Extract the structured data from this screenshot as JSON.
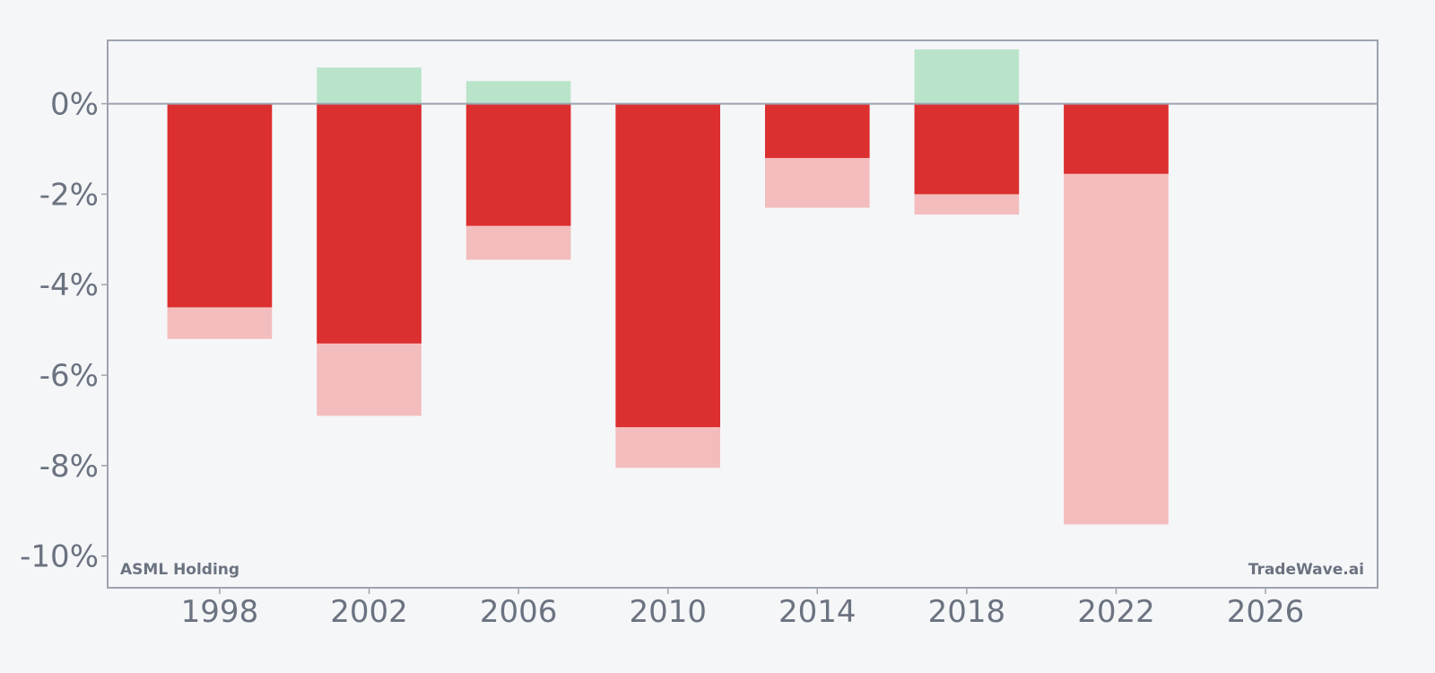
{
  "chart_data": {
    "type": "bar",
    "title": "",
    "xlabel": "",
    "ylabel": "",
    "x_ticks": [
      "1998",
      "2002",
      "2006",
      "2010",
      "2014",
      "2018",
      "2022",
      "2026"
    ],
    "y_ticks": [
      "0%",
      "-2%",
      "-4%",
      "-6%",
      "-8%",
      "-10%"
    ],
    "y_tick_values": [
      0,
      -2,
      -4,
      -6,
      -8,
      -10
    ],
    "xlim": [
      1995,
      2029
    ],
    "ylim": [
      -10.7,
      1.4
    ],
    "bar_width_years": 2.8,
    "grid": false,
    "series": [
      {
        "role": "up",
        "color": "#b9e4c9",
        "points": [
          {
            "x": 2002,
            "y": 0.8
          },
          {
            "x": 2006,
            "y": 0.5
          },
          {
            "x": 2018,
            "y": 1.2
          }
        ]
      },
      {
        "role": "down",
        "color": "#dc2f2f",
        "points": [
          {
            "x": 1998,
            "y": -4.5
          },
          {
            "x": 2002,
            "y": -5.3
          },
          {
            "x": 2006,
            "y": -2.7
          },
          {
            "x": 2010,
            "y": -7.15
          },
          {
            "x": 2014,
            "y": -1.2
          },
          {
            "x": 2018,
            "y": -2.0
          },
          {
            "x": 2022,
            "y": -1.55
          }
        ]
      },
      {
        "role": "down-extended",
        "color": "#f4bdbd",
        "points": [
          {
            "x": 1998,
            "y": -5.2
          },
          {
            "x": 2002,
            "y": -6.9
          },
          {
            "x": 2006,
            "y": -3.45
          },
          {
            "x": 2010,
            "y": -8.05
          },
          {
            "x": 2014,
            "y": -2.3
          },
          {
            "x": 2018,
            "y": -2.45
          },
          {
            "x": 2022,
            "y": -9.3
          }
        ]
      }
    ],
    "colors": {
      "axis": "#9ca3af",
      "zero_line": "#9ca3af",
      "tick_text": "#6b7280",
      "background": "#f5f6f8"
    }
  },
  "labels": {
    "company": "ASML Holding",
    "brand": "TradeWave.ai"
  }
}
